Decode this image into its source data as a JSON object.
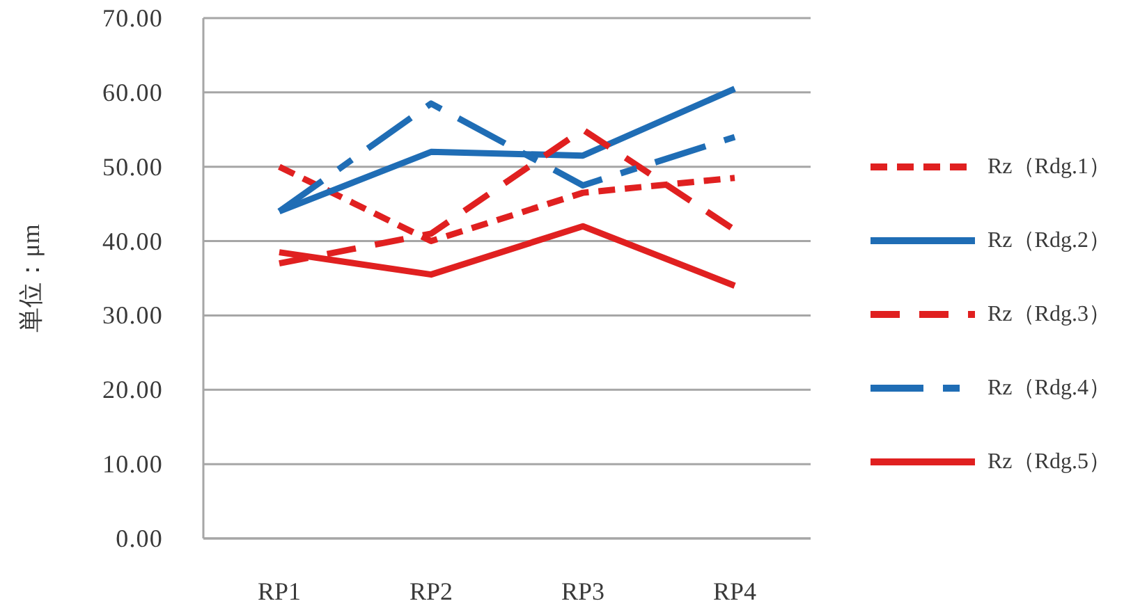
{
  "chart_data": {
    "type": "line",
    "ylabel": "単位：μm",
    "categories": [
      "RP1",
      "RP2",
      "RP3",
      "RP4"
    ],
    "ylim": [
      0,
      70
    ],
    "yticks": [
      {
        "value": 0,
        "label": "0.00"
      },
      {
        "value": 10,
        "label": "10.00"
      },
      {
        "value": 20,
        "label": "20.00"
      },
      {
        "value": 30,
        "label": "30.00"
      },
      {
        "value": 40,
        "label": "40.00"
      },
      {
        "value": 50,
        "label": "50.00"
      },
      {
        "value": 60,
        "label": "60.00"
      },
      {
        "value": 70,
        "label": "70.00"
      }
    ],
    "grid": "y",
    "legend": "right",
    "series": [
      {
        "name": "Rz（Rdg.1）",
        "color": "#e02020",
        "line_style": "dotted",
        "values": [
          50,
          40,
          46.5,
          48.5
        ]
      },
      {
        "name": "Rz（Rdg.2）",
        "color": "#1f6db5",
        "line_style": "solid",
        "values": [
          44,
          52,
          51.5,
          60.5
        ]
      },
      {
        "name": "Rz（Rdg.3）",
        "color": "#e02020",
        "line_style": "dashed",
        "values": [
          37,
          41,
          55,
          41.5
        ]
      },
      {
        "name": "Rz（Rdg.4）",
        "color": "#1f6db5",
        "line_style": "dashdot",
        "values": [
          44,
          58.5,
          47.5,
          54
        ]
      },
      {
        "name": "Rz（Rdg.5）",
        "color": "#e02020",
        "line_style": "solid",
        "values": [
          38.5,
          35.5,
          42,
          34
        ]
      }
    ]
  }
}
